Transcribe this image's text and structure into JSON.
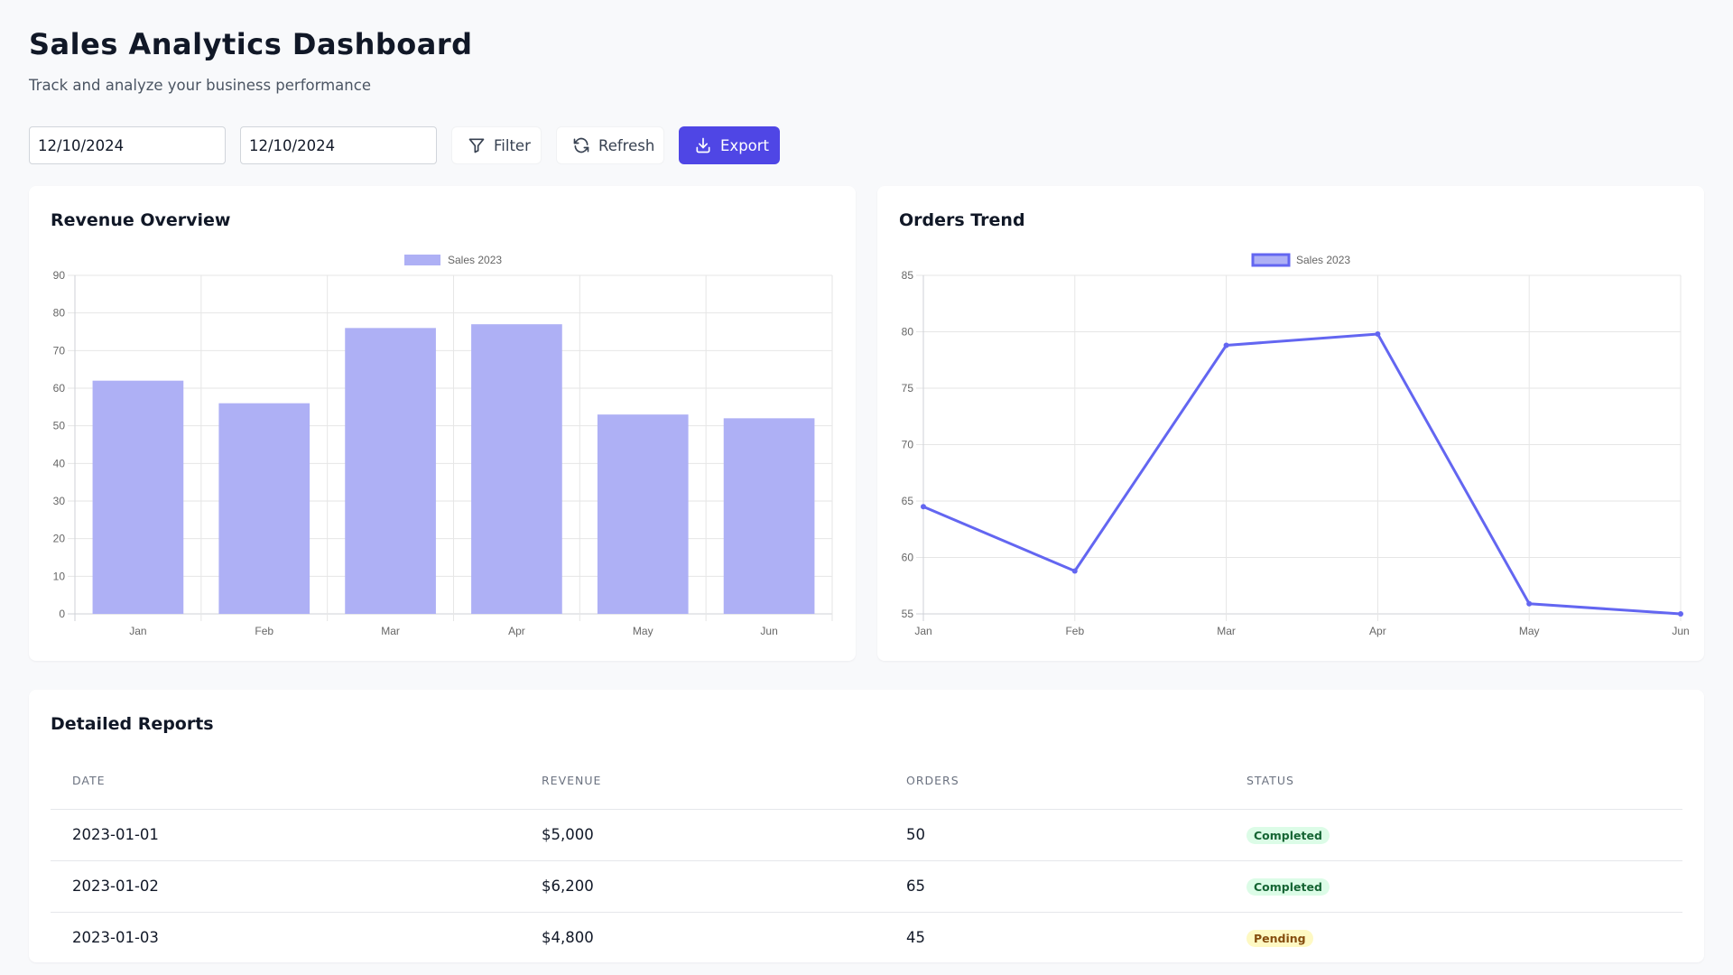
{
  "header": {
    "title": "Sales Analytics Dashboard",
    "subtitle": "Track and analyze your business performance"
  },
  "filters": {
    "start_date": "12/10/2024",
    "end_date": "12/10/2024"
  },
  "toolbar": {
    "filter_label": "Filter",
    "refresh_label": "Refresh",
    "export_label": "Export",
    "filter_icon": "filter-icon",
    "refresh_icon": "refresh-icon",
    "export_icon": "download-icon"
  },
  "colors": {
    "accent": "#4f46e5",
    "series_line": "#6366f1",
    "series_fill": "#aeb0f5",
    "completed_bg": "#dcfce7",
    "completed_text": "#166534",
    "pending_bg": "#fef9c3",
    "pending_text": "#854d0e"
  },
  "revenue_card": {
    "title": "Revenue Overview"
  },
  "orders_card": {
    "title": "Orders Trend"
  },
  "chart_data": [
    {
      "type": "bar",
      "title": "Revenue Overview",
      "categories": [
        "Jan",
        "Feb",
        "Mar",
        "Apr",
        "May",
        "Jun"
      ],
      "series": [
        {
          "name": "Sales 2023",
          "values": [
            62,
            56,
            76,
            77,
            53,
            52
          ]
        }
      ],
      "ylim": [
        0,
        90
      ],
      "yticks": [
        0,
        10,
        20,
        30,
        40,
        50,
        60,
        70,
        80,
        90
      ],
      "grid": true,
      "legend": "top-center"
    },
    {
      "type": "line",
      "title": "Orders Trend",
      "categories": [
        "Jan",
        "Feb",
        "Mar",
        "Apr",
        "May",
        "Jun"
      ],
      "series": [
        {
          "name": "Sales 2023",
          "values": [
            64.5,
            58.8,
            78.8,
            79.8,
            55.9,
            55
          ]
        }
      ],
      "ylim": [
        55,
        85
      ],
      "yticks": [
        55,
        60,
        65,
        70,
        75,
        80,
        85
      ],
      "grid": true,
      "legend": "top-center"
    }
  ],
  "reports": {
    "title": "Detailed Reports",
    "columns": [
      "DATE",
      "REVENUE",
      "ORDERS",
      "STATUS"
    ],
    "rows": [
      {
        "date": "2023-01-01",
        "revenue": "$5,000",
        "orders": "50",
        "status": "Completed"
      },
      {
        "date": "2023-01-02",
        "revenue": "$6,200",
        "orders": "65",
        "status": "Completed"
      },
      {
        "date": "2023-01-03",
        "revenue": "$4,800",
        "orders": "45",
        "status": "Pending"
      }
    ]
  }
}
